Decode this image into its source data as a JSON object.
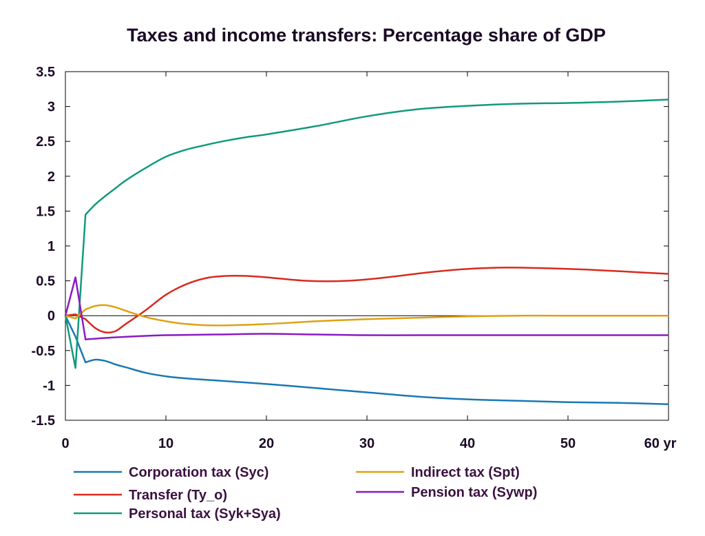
{
  "chart_data": {
    "type": "line",
    "title": "Taxes and income transfers: Percentage share of GDP",
    "xlabel": "",
    "ylabel": "",
    "xlim": [
      0,
      60
    ],
    "ylim": [
      -1.5,
      3.5
    ],
    "x_ticks": [
      "0",
      "10",
      "20",
      "30",
      "40",
      "50",
      "60 yr"
    ],
    "x_tick_values": [
      0,
      10,
      20,
      30,
      40,
      50,
      60
    ],
    "y_ticks": [
      "3.5",
      "3",
      "2.5",
      "2",
      "1.5",
      "1",
      "0.5",
      "0",
      "-0.5",
      "-1",
      "-1.5"
    ],
    "y_tick_values": [
      3.5,
      3,
      2.5,
      2,
      1.5,
      1,
      0.5,
      0,
      -0.5,
      -1,
      -1.5
    ],
    "grid": false,
    "zero_line": true,
    "legend_position": "bottom",
    "series": [
      {
        "name": "Corporation tax (Syc)",
        "color": "#1878b4",
        "x": [
          0,
          1,
          2,
          3,
          4,
          5,
          6,
          8,
          10,
          12,
          15,
          20,
          25,
          30,
          35,
          40,
          45,
          50,
          55,
          60
        ],
        "values": [
          0,
          -0.3,
          -0.67,
          -0.63,
          -0.65,
          -0.7,
          -0.74,
          -0.82,
          -0.87,
          -0.9,
          -0.93,
          -0.98,
          -1.04,
          -1.1,
          -1.16,
          -1.2,
          -1.22,
          -1.24,
          -1.25,
          -1.27
        ]
      },
      {
        "name": "Transfer (Ty_o)",
        "color": "#d82a1e",
        "x": [
          0,
          1,
          2,
          3,
          4,
          5,
          6,
          8,
          10,
          12,
          14,
          16,
          18,
          20,
          24,
          28,
          32,
          36,
          40,
          44,
          48,
          52,
          56,
          60
        ],
        "values": [
          0,
          0.02,
          -0.05,
          -0.18,
          -0.24,
          -0.22,
          -0.12,
          0.08,
          0.3,
          0.45,
          0.54,
          0.57,
          0.57,
          0.55,
          0.5,
          0.5,
          0.55,
          0.62,
          0.67,
          0.69,
          0.68,
          0.66,
          0.63,
          0.6
        ]
      },
      {
        "name": "Personal tax (Syk+Sya)",
        "color": "#109a7a",
        "x": [
          0,
          1,
          2,
          3,
          4,
          5,
          6,
          8,
          10,
          12,
          14,
          16,
          18,
          20,
          25,
          30,
          35,
          40,
          45,
          50,
          55,
          60
        ],
        "values": [
          0,
          -0.75,
          1.45,
          1.6,
          1.72,
          1.83,
          1.94,
          2.12,
          2.28,
          2.38,
          2.45,
          2.51,
          2.56,
          2.6,
          2.72,
          2.86,
          2.96,
          3.01,
          3.04,
          3.05,
          3.07,
          3.1
        ]
      },
      {
        "name": "Indirect tax (Spt)",
        "color": "#e0a010",
        "x": [
          0,
          1,
          2,
          3,
          4,
          5,
          6,
          8,
          10,
          12,
          15,
          20,
          25,
          30,
          35,
          40,
          45,
          50,
          55,
          60
        ],
        "values": [
          0,
          -0.04,
          0.09,
          0.14,
          0.15,
          0.12,
          0.07,
          -0.02,
          -0.08,
          -0.12,
          -0.14,
          -0.12,
          -0.08,
          -0.05,
          -0.03,
          -0.01,
          0,
          0,
          0,
          0
        ]
      },
      {
        "name": "Pension tax (Sywp)",
        "color": "#8a1ac0",
        "x": [
          0,
          1,
          2,
          3,
          5,
          8,
          10,
          15,
          20,
          25,
          30,
          35,
          40,
          45,
          50,
          55,
          60
        ],
        "values": [
          0,
          0.55,
          -0.34,
          -0.33,
          -0.31,
          -0.29,
          -0.28,
          -0.27,
          -0.26,
          -0.27,
          -0.28,
          -0.28,
          -0.28,
          -0.28,
          -0.28,
          -0.28,
          -0.28
        ]
      }
    ]
  }
}
